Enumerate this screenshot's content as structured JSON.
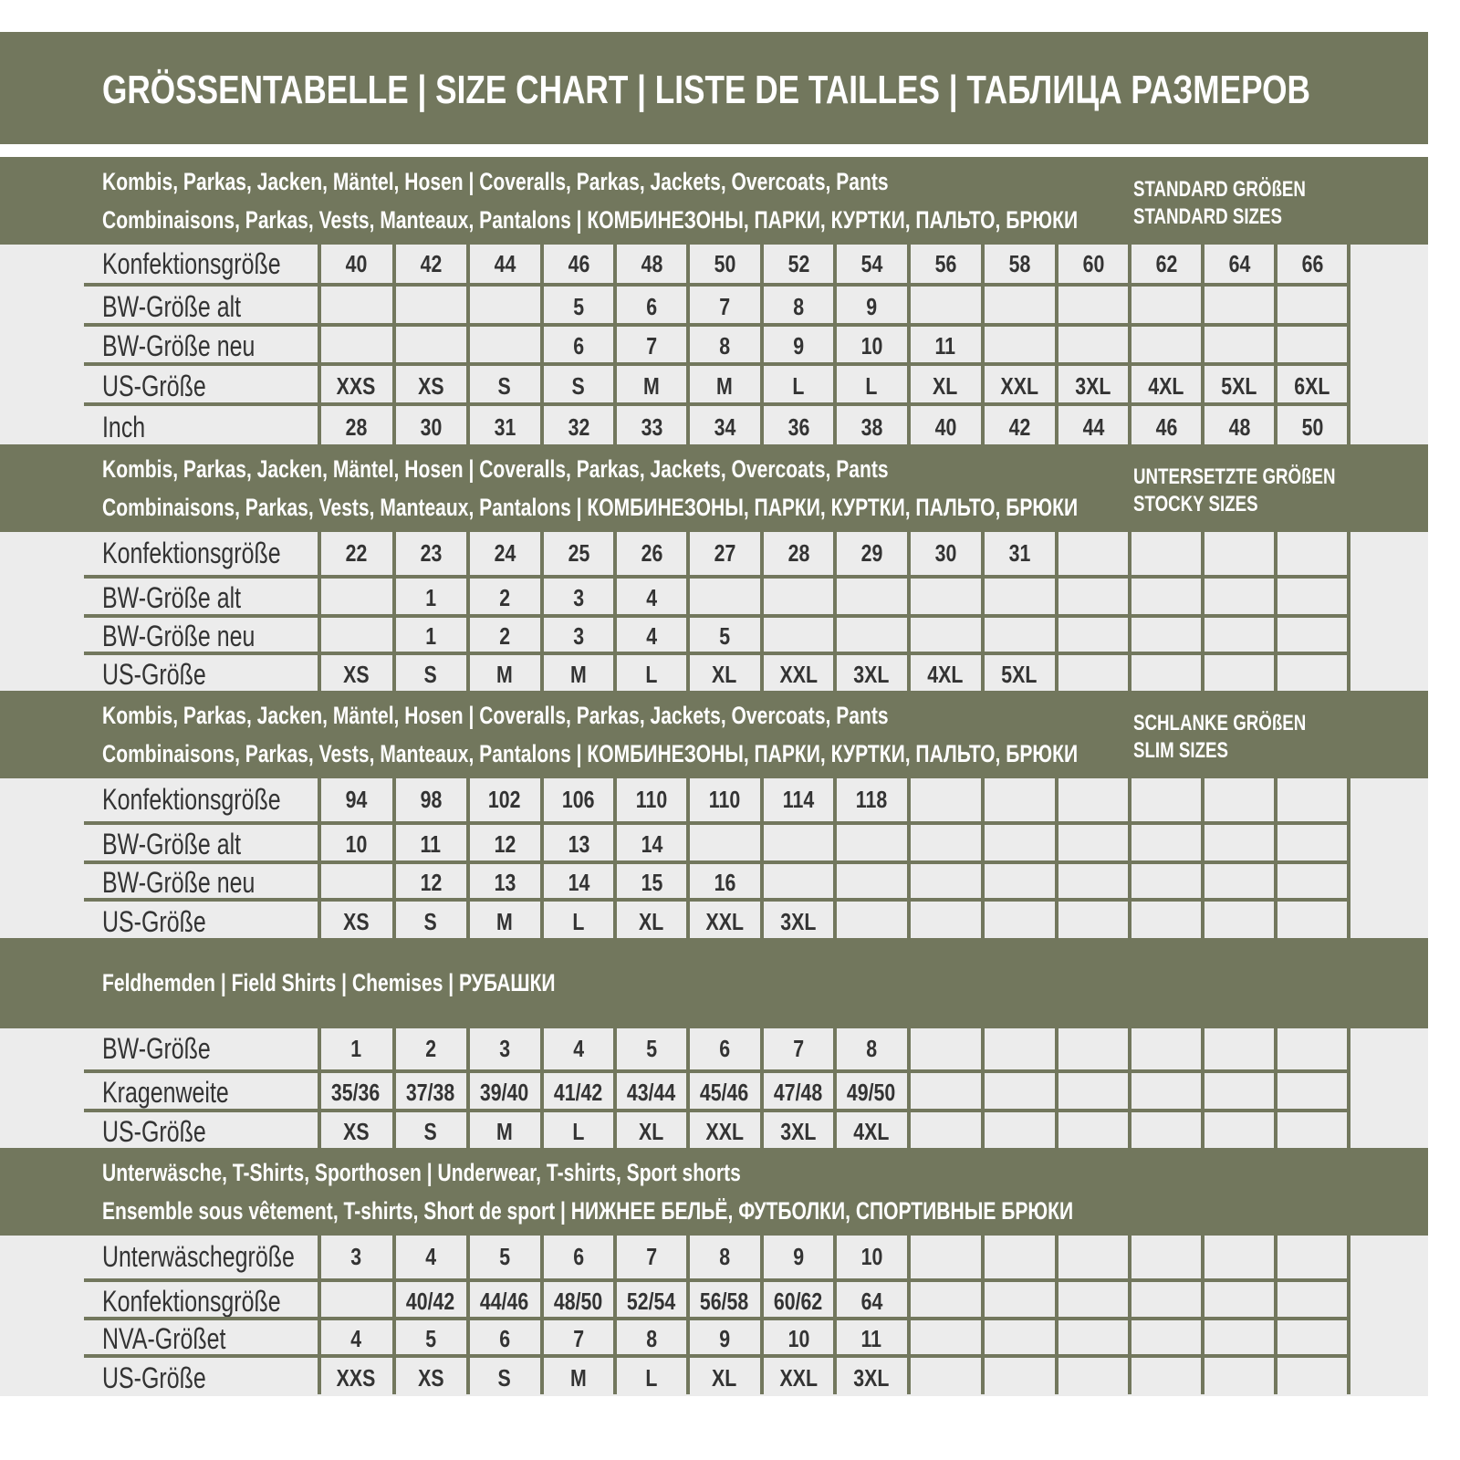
{
  "title": "GRÖSSENTABELLE | SIZE CHART | LISTE DE TAILLES | ТАБЛИЦА РАЗМЕРОВ",
  "colors": {
    "band": "#72775d",
    "table_bg": "#ececec",
    "text": "#333333"
  },
  "sections": [
    {
      "line1": "Kombis, Parkas, Jacken, Mäntel, Hosen | Coveralls, Parkas, Jackets, Overcoats, Pants",
      "line2": "Combinaisons, Parkas, Vests, Manteaux, Pantalons | КОМБИНЕЗОНЫ, ПАРКИ, КУРТКИ, ПАЛЬТО, БРЮКИ",
      "right1": "STANDARD GRÖßEN",
      "right2": "STANDARD SIZES",
      "rows": [
        {
          "label": "Konfektionsgröße",
          "cells": [
            "40",
            "42",
            "44",
            "46",
            "48",
            "50",
            "52",
            "54",
            "56",
            "58",
            "60",
            "62",
            "64",
            "66"
          ]
        },
        {
          "label": "BW-Größe alt",
          "cells": [
            "",
            "",
            "",
            "5",
            "6",
            "7",
            "8",
            "9",
            "",
            "",
            "",
            "",
            "",
            ""
          ]
        },
        {
          "label": "BW-Größe neu",
          "cells": [
            "",
            "",
            "",
            "6",
            "7",
            "8",
            "9",
            "10",
            "11",
            "",
            "",
            "",
            "",
            ""
          ]
        },
        {
          "label": "US-Größe",
          "cells": [
            "XXS",
            "XS",
            "S",
            "S",
            "M",
            "M",
            "L",
            "L",
            "XL",
            "XXL",
            "3XL",
            "4XL",
            "5XL",
            "6XL"
          ]
        },
        {
          "label": "Inch",
          "cells": [
            "28",
            "30",
            "31",
            "32",
            "33",
            "34",
            "36",
            "38",
            "40",
            "42",
            "44",
            "46",
            "48",
            "50"
          ]
        }
      ]
    },
    {
      "line1": "Kombis, Parkas, Jacken, Mäntel, Hosen | Coveralls, Parkas, Jackets, Overcoats, Pants",
      "line2": "Combinaisons, Parkas, Vests, Manteaux, Pantalons | КОМБИНЕЗОНЫ, ПАРКИ, КУРТКИ, ПАЛЬТО, БРЮКИ",
      "right1": "UNTERSETZTE GRÖßEN",
      "right2": "STOCKY SIZES",
      "rows": [
        {
          "label": "Konfektionsgröße",
          "cells": [
            "22",
            "23",
            "24",
            "25",
            "26",
            "27",
            "28",
            "29",
            "30",
            "31",
            "",
            "",
            "",
            ""
          ]
        },
        {
          "label": "BW-Größe alt",
          "cells": [
            "",
            "1",
            "2",
            "3",
            "4",
            "",
            "",
            "",
            "",
            "",
            "",
            "",
            "",
            ""
          ]
        },
        {
          "label": "BW-Größe neu",
          "cells": [
            "",
            "1",
            "2",
            "3",
            "4",
            "5",
            "",
            "",
            "",
            "",
            "",
            "",
            "",
            ""
          ]
        },
        {
          "label": "US-Größe",
          "cells": [
            "XS",
            "S",
            "M",
            "M",
            "L",
            "XL",
            "XXL",
            "3XL",
            "4XL",
            "5XL",
            "",
            "",
            "",
            ""
          ]
        }
      ]
    },
    {
      "line1": "Kombis, Parkas, Jacken, Mäntel, Hosen | Coveralls, Parkas, Jackets, Overcoats, Pants",
      "line2": "Combinaisons, Parkas, Vests, Manteaux, Pantalons | КОМБИНЕЗОНЫ, ПАРКИ, КУРТКИ, ПАЛЬТО, БРЮКИ",
      "right1": "SCHLANKE GRÖßEN",
      "right2": "SLIM SIZES",
      "rows": [
        {
          "label": "Konfektionsgröße",
          "cells": [
            "94",
            "98",
            "102",
            "106",
            "110",
            "110",
            "114",
            "118",
            "",
            "",
            "",
            "",
            "",
            ""
          ]
        },
        {
          "label": "BW-Größe alt",
          "cells": [
            "10",
            "11",
            "12",
            "13",
            "14",
            "",
            "",
            "",
            "",
            "",
            "",
            "",
            "",
            ""
          ]
        },
        {
          "label": "BW-Größe neu",
          "cells": [
            "",
            "12",
            "13",
            "14",
            "15",
            "16",
            "",
            "",
            "",
            "",
            "",
            "",
            "",
            ""
          ]
        },
        {
          "label": "US-Größe",
          "cells": [
            "XS",
            "S",
            "M",
            "L",
            "XL",
            "XXL",
            "3XL",
            "",
            "",
            "",
            "",
            "",
            "",
            ""
          ]
        }
      ]
    },
    {
      "line1": "Feldhemden | Field Shirts | Chemises | РУБАШКИ",
      "rows": [
        {
          "label": "BW-Größe",
          "cells": [
            "1",
            "2",
            "3",
            "4",
            "5",
            "6",
            "7",
            "8",
            "",
            "",
            "",
            "",
            "",
            ""
          ]
        },
        {
          "label": "Kragenweite",
          "cells": [
            "35/36",
            "37/38",
            "39/40",
            "41/42",
            "43/44",
            "45/46",
            "47/48",
            "49/50",
            "",
            "",
            "",
            "",
            "",
            ""
          ]
        },
        {
          "label": "US-Größe",
          "cells": [
            "XS",
            "S",
            "M",
            "L",
            "XL",
            "XXL",
            "3XL",
            "4XL",
            "",
            "",
            "",
            "",
            "",
            ""
          ]
        }
      ]
    },
    {
      "line1": "Unterwäsche, T-Shirts, Sporthosen | Underwear, T-shirts, Sport shorts",
      "line2": "Ensemble sous vêtement, T-shirts, Short de sport | НИЖНЕЕ БЕЛЬЁ, ФУТБОЛКИ, СПОРТИВНЫЕ БРЮКИ",
      "rows": [
        {
          "label": "Unterwäschegröße",
          "cells": [
            "3",
            "4",
            "5",
            "6",
            "7",
            "8",
            "9",
            "10",
            "",
            "",
            "",
            "",
            "",
            ""
          ]
        },
        {
          "label": "Konfektionsgröße",
          "cells": [
            "",
            "40/42",
            "44/46",
            "48/50",
            "52/54",
            "56/58",
            "60/62",
            "64",
            "",
            "",
            "",
            "",
            "",
            ""
          ]
        },
        {
          "label": "NVA-Größet",
          "cells": [
            "4",
            "5",
            "6",
            "7",
            "8",
            "9",
            "10",
            "11",
            "",
            "",
            "",
            "",
            "",
            ""
          ]
        },
        {
          "label": "US-Größe",
          "cells": [
            "XXS",
            "XS",
            "S",
            "M",
            "L",
            "XL",
            "XXL",
            "3XL",
            "",
            "",
            "",
            "",
            "",
            ""
          ]
        }
      ]
    }
  ]
}
